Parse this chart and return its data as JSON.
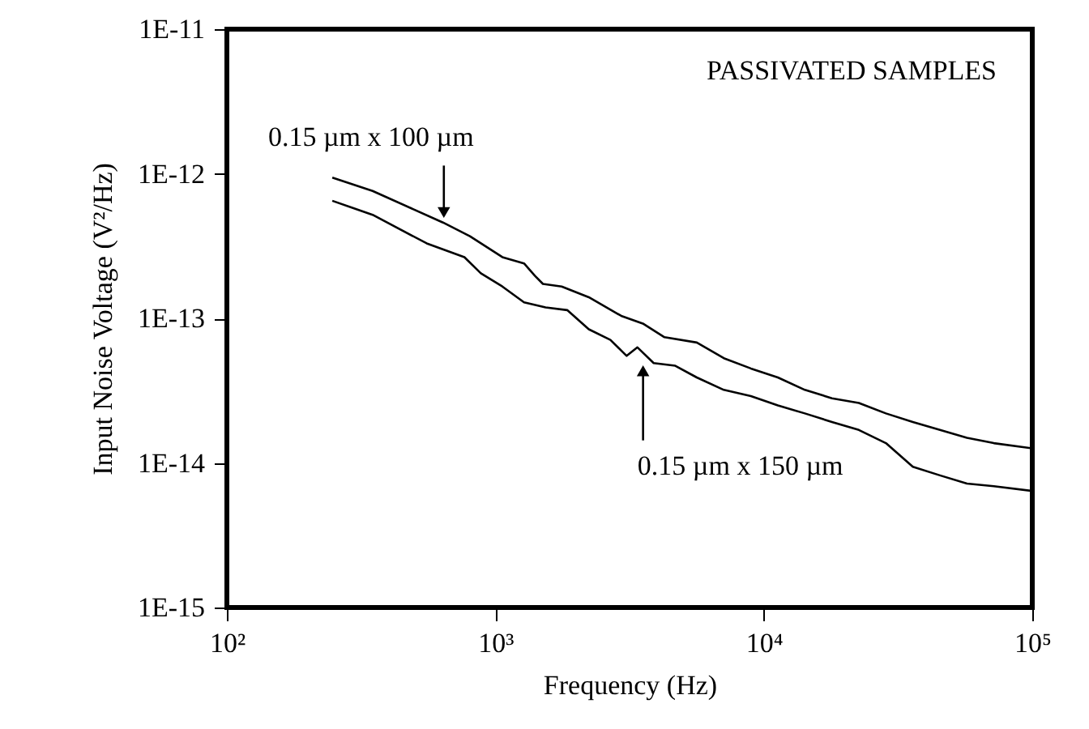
{
  "chart_data": {
    "type": "line",
    "xlabel": "Frequency (Hz)",
    "ylabel": "Input Noise Voltage (V²/Hz)",
    "log": "xy",
    "grid": false,
    "legend": false,
    "xlim": [
      100,
      100000
    ],
    "xticks": [
      {
        "value": 100,
        "label": "10²"
      },
      {
        "value": 1000,
        "label": "10³"
      },
      {
        "value": 10000,
        "label": "10⁴"
      },
      {
        "value": 100000,
        "label": "10⁵"
      }
    ],
    "ylim": [
      1e-15,
      1e-11
    ],
    "yticks": [
      {
        "value": 1e-15,
        "label": "1E-15"
      },
      {
        "value": 1e-14,
        "label": "1E-14"
      },
      {
        "value": 1e-13,
        "label": "1E-13"
      },
      {
        "value": 1e-12,
        "label": "1E-12"
      },
      {
        "value": 1e-11,
        "label": "1E-11"
      }
    ],
    "series": [
      {
        "color": "#000000",
        "x": [
          247,
          349,
          638,
          804,
          1062,
          1279,
          1403,
          1504,
          1767,
          2229,
          2944,
          3543,
          4266,
          5628,
          7096,
          8950,
          11280,
          14220,
          17940,
          22600,
          28500,
          35900,
          45300,
          57100,
          71900,
          100000
        ],
        "values": [
          9.4e-13,
          7.6e-13,
          4.6e-13,
          3.7e-13,
          2.65e-13,
          2.4e-13,
          1.97e-13,
          1.73e-13,
          1.66e-13,
          1.4e-13,
          1.04e-13,
          9.2e-14,
          7.4e-14,
          6.8e-14,
          5.3e-14,
          4.5e-14,
          3.9e-14,
          3.2e-14,
          2.8e-14,
          2.6e-14,
          2.2e-14,
          1.92e-14,
          1.69e-14,
          1.49e-14,
          1.37e-14,
          1.26e-14
        ]
      },
      {
        "color": "#000000",
        "x": [
          247,
          349,
          555,
          767,
          883,
          1062,
          1279,
          1538,
          1852,
          2229,
          2683,
          3084,
          3383,
          3888,
          4680,
          5628,
          7096,
          8950,
          11280,
          14220,
          17940,
          22600,
          28500,
          35900,
          45300,
          57100,
          71900,
          100000
        ],
        "values": [
          6.5e-13,
          5.2e-13,
          3.3e-13,
          2.65e-13,
          2.05e-13,
          1.66e-13,
          1.29e-13,
          1.19e-13,
          1.14e-13,
          8.4e-14,
          7.1e-14,
          5.5e-14,
          6.3e-14,
          4.9e-14,
          4.7e-14,
          3.9e-14,
          3.2e-14,
          2.9e-14,
          2.5e-14,
          2.2e-14,
          1.92e-14,
          1.69e-14,
          1.37e-14,
          9.4e-15,
          8.2e-15,
          7.2e-15,
          6.9e-15,
          6.4e-15
        ]
      }
    ],
    "annotations": [
      "PASSIVATED SAMPLES",
      {
        "text": "0.15 µm x 100 µm",
        "x": 643,
        "y": 4.5e-13
      },
      {
        "text": "0.15 µm x 150 µm",
        "x": 3550,
        "y": 5.2e-14
      }
    ]
  }
}
